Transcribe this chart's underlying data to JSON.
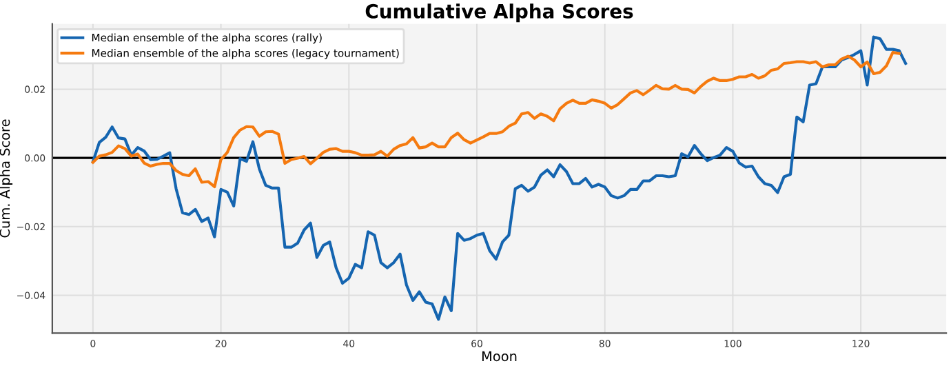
{
  "chart_data": {
    "type": "line",
    "title": "Cumulative Alpha Scores",
    "xlabel": "Moon",
    "ylabel": "Cum. Alpha Score",
    "series": [
      {
        "name": "Median ensemble of the alpha scores (rally)",
        "color": "#1565b0",
        "x": [
          0,
          1,
          2,
          3,
          4,
          5,
          6,
          7,
          8,
          9,
          10,
          11,
          12,
          13,
          14,
          15,
          16,
          17,
          18,
          19,
          20,
          21,
          22,
          23,
          24,
          25,
          26,
          27,
          28,
          29,
          30,
          31,
          32,
          33,
          34,
          35,
          36,
          37,
          38,
          39,
          40,
          41,
          42,
          43,
          44,
          45,
          46,
          47,
          48,
          49,
          50,
          51,
          52,
          53,
          54,
          55,
          56,
          57,
          58,
          59,
          60,
          61,
          62,
          63,
          64,
          65,
          66,
          67,
          68,
          69,
          70,
          71,
          72,
          73,
          74,
          75,
          76,
          77,
          78,
          79,
          80,
          81,
          82,
          83,
          84,
          85,
          86,
          87,
          88,
          89,
          90,
          91,
          92,
          93,
          94,
          95,
          96,
          97,
          98,
          99,
          100,
          101,
          102,
          103,
          104,
          105,
          106,
          107,
          108,
          109,
          110,
          111,
          112,
          113,
          114,
          115,
          116,
          117,
          118,
          119,
          120,
          121,
          122,
          123,
          124,
          125,
          126,
          127
        ],
        "values": [
          -0.0011,
          0.0045,
          0.006,
          0.009,
          0.0058,
          0.0055,
          0.0008,
          0.003,
          0.002,
          -0.0005,
          -0.0004,
          0.0005,
          0.0015,
          -0.009,
          -0.016,
          -0.0165,
          -0.015,
          -0.0185,
          -0.0175,
          -0.023,
          -0.0092,
          -0.01,
          -0.014,
          -0.0002,
          -0.001,
          0.0047,
          -0.0032,
          -0.008,
          -0.0088,
          -0.0088,
          -0.026,
          -0.026,
          -0.0248,
          -0.021,
          -0.019,
          -0.029,
          -0.0255,
          -0.0245,
          -0.032,
          -0.0365,
          -0.035,
          -0.031,
          -0.032,
          -0.0215,
          -0.0225,
          -0.0305,
          -0.032,
          -0.0305,
          -0.028,
          -0.037,
          -0.0415,
          -0.039,
          -0.042,
          -0.0425,
          -0.047,
          -0.0405,
          -0.0445,
          -0.022,
          -0.024,
          -0.0235,
          -0.0225,
          -0.022,
          -0.027,
          -0.0295,
          -0.0245,
          -0.0225,
          -0.009,
          -0.008,
          -0.0097,
          -0.0085,
          -0.005,
          -0.0035,
          -0.0055,
          -0.002,
          -0.004,
          -0.0075,
          -0.0075,
          -0.006,
          -0.0085,
          -0.0077,
          -0.0085,
          -0.011,
          -0.0117,
          -0.011,
          -0.0092,
          -0.0092,
          -0.0067,
          -0.0067,
          -0.0052,
          -0.0052,
          -0.0055,
          -0.0052,
          0.0012,
          0.0003,
          0.0036,
          0.0012,
          -0.0008,
          0.0001,
          0.0008,
          0.003,
          0.0019,
          -0.0015,
          -0.0027,
          -0.0024,
          -0.0055,
          -0.0075,
          -0.008,
          -0.0101,
          -0.0055,
          -0.0048,
          0.0119,
          0.0105,
          0.0212,
          0.0216,
          0.0265,
          0.0265,
          0.0265,
          0.0285,
          0.0292,
          0.0301,
          0.0312,
          0.0212,
          0.0352,
          0.0347,
          0.0316,
          0.0316,
          0.0312,
          0.0275
        ]
      },
      {
        "name": "Median ensemble of the alpha scores (legacy tournament)",
        "color": "#f57a0f",
        "x": [
          0,
          1,
          2,
          3,
          4,
          5,
          6,
          7,
          8,
          9,
          10,
          11,
          12,
          13,
          14,
          15,
          16,
          17,
          18,
          19,
          20,
          21,
          22,
          23,
          24,
          25,
          26,
          27,
          28,
          29,
          30,
          31,
          32,
          33,
          34,
          35,
          36,
          37,
          38,
          39,
          40,
          41,
          42,
          43,
          44,
          45,
          46,
          47,
          48,
          49,
          50,
          51,
          52,
          53,
          54,
          55,
          56,
          57,
          58,
          59,
          60,
          61,
          62,
          63,
          64,
          65,
          66,
          67,
          68,
          69,
          70,
          71,
          72,
          73,
          74,
          75,
          76,
          77,
          78,
          79,
          80,
          81,
          82,
          83,
          84,
          85,
          86,
          87,
          88,
          89,
          90,
          91,
          92,
          93,
          94,
          95,
          96,
          97,
          98,
          99,
          100,
          101,
          102,
          103,
          104,
          105,
          106,
          107,
          108,
          109,
          110,
          111,
          112,
          113,
          114,
          115,
          116,
          117,
          118,
          119,
          120,
          121,
          122,
          123,
          124,
          125,
          126
        ],
        "values": [
          -0.0013,
          0.0005,
          0.0009,
          0.0016,
          0.0035,
          0.0027,
          0.0005,
          0.0011,
          -0.0015,
          -0.0024,
          -0.0019,
          -0.0016,
          -0.0016,
          -0.0037,
          -0.0048,
          -0.0052,
          -0.0032,
          -0.0071,
          -0.0069,
          -0.0084,
          -0.0005,
          0.0016,
          0.0059,
          0.0081,
          0.0091,
          0.009,
          0.0063,
          0.0076,
          0.0077,
          0.0069,
          -0.0016,
          -0.0005,
          -0.0001,
          0.0004,
          -0.0017,
          -0.0001,
          0.0016,
          0.0025,
          0.0027,
          0.0019,
          0.0019,
          0.0015,
          0.0008,
          0.0008,
          0.0009,
          0.0019,
          0.0005,
          0.0025,
          0.0036,
          0.0041,
          0.0059,
          0.0029,
          0.0032,
          0.0043,
          0.0032,
          0.0032,
          0.0059,
          0.0072,
          0.0053,
          0.0043,
          0.0052,
          0.0061,
          0.0071,
          0.0071,
          0.0076,
          0.0092,
          0.0101,
          0.0128,
          0.0132,
          0.0115,
          0.0128,
          0.0121,
          0.0108,
          0.0143,
          0.0159,
          0.0168,
          0.0159,
          0.0159,
          0.0169,
          0.0165,
          0.0159,
          0.0145,
          0.0155,
          0.0172,
          0.0189,
          0.0196,
          0.0184,
          0.0197,
          0.0211,
          0.0201,
          0.02,
          0.0211,
          0.02,
          0.0199,
          0.0189,
          0.0208,
          0.0223,
          0.0232,
          0.0225,
          0.0225,
          0.0229,
          0.0236,
          0.0236,
          0.0243,
          0.0232,
          0.0239,
          0.0255,
          0.0259,
          0.0275,
          0.0277,
          0.028,
          0.028,
          0.0276,
          0.028,
          0.0265,
          0.0271,
          0.0271,
          0.0288,
          0.0296,
          0.0285,
          0.0265,
          0.0279,
          0.0245,
          0.0249,
          0.0268,
          0.0307,
          0.0304
        ]
      }
    ],
    "xlim": [
      -6.35,
      133.35
    ],
    "xticks": [
      0,
      20,
      40,
      60,
      80,
      100,
      120
    ],
    "ylim": [
      -0.051,
      0.039
    ],
    "yticks": [
      {
        "value": -0.04,
        "label": "−0.04"
      },
      {
        "value": -0.02,
        "label": "−0.02"
      },
      {
        "value": 0,
        "label": "0.00"
      },
      {
        "value": 0.02,
        "label": "0.02"
      }
    ],
    "ref_lines": [
      {
        "axis": "y",
        "value": 0,
        "color": "#000000",
        "line_style": "solid"
      }
    ],
    "grid": true,
    "legend": "top left",
    "line_style": "solid",
    "marker": "none"
  }
}
